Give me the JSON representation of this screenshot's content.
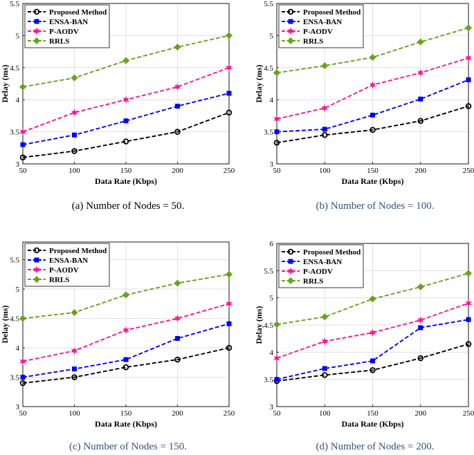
{
  "legend": [
    "Proposed Method",
    "ENSA-BAN",
    "P-AODV",
    "RRLS"
  ],
  "series_colors": [
    "#000000",
    "#0000ff",
    "#ff1493",
    "#6aa121"
  ],
  "chart_data": [
    {
      "type": "line",
      "caption": "(a)  Number of Nodes = 50.",
      "xlabel": "Data Rate (Kbps)",
      "ylabel": "Delay (ms)",
      "x": [
        50,
        100,
        150,
        200,
        250
      ],
      "xticks": [
        "50",
        "100",
        "150",
        "200",
        "250"
      ],
      "ylim": [
        3,
        5.5
      ],
      "yticks": [
        "3",
        "3.5",
        "4",
        "4.5",
        "5",
        "5.5"
      ],
      "series": [
        {
          "name": "Proposed Method",
          "values": [
            3.1,
            3.2,
            3.35,
            3.5,
            3.8
          ]
        },
        {
          "name": "ENSA-BAN",
          "values": [
            3.3,
            3.45,
            3.67,
            3.9,
            4.1
          ]
        },
        {
          "name": "P-AODV",
          "values": [
            3.5,
            3.8,
            4.0,
            4.2,
            4.5
          ]
        },
        {
          "name": "RRLS",
          "values": [
            4.2,
            4.34,
            4.61,
            4.82,
            5.0
          ]
        }
      ]
    },
    {
      "type": "line",
      "caption": "(b)  Number of Nodes = 100.",
      "xlabel": "Data Rate (Kbps)",
      "ylabel": "Delay (ms)",
      "x": [
        50,
        100,
        150,
        200,
        250
      ],
      "xticks": [
        "50",
        "100",
        "150",
        "200",
        "250"
      ],
      "ylim": [
        3,
        5.5
      ],
      "yticks": [
        "3",
        "3.5",
        "4",
        "4.5",
        "5",
        "5.5"
      ],
      "series": [
        {
          "name": "Proposed Method",
          "values": [
            3.33,
            3.45,
            3.53,
            3.67,
            3.9
          ]
        },
        {
          "name": "ENSA-BAN",
          "values": [
            3.5,
            3.54,
            3.76,
            4.01,
            4.31
          ]
        },
        {
          "name": "P-AODV",
          "values": [
            3.7,
            3.87,
            4.23,
            4.42,
            4.65
          ]
        },
        {
          "name": "RRLS",
          "values": [
            4.42,
            4.53,
            4.66,
            4.9,
            5.12
          ]
        }
      ]
    },
    {
      "type": "line",
      "caption": "(c)  Number of Nodes = 150.",
      "xlabel": "Data Rate (Kbps)",
      "ylabel": "Delay (ms)",
      "x": [
        50,
        100,
        150,
        200,
        250
      ],
      "xticks": [
        "50",
        "100",
        "150",
        "200",
        "250"
      ],
      "ylim": [
        3,
        5.8
      ],
      "yticks": [
        "3",
        "3.5",
        "4",
        "4.5",
        "5",
        "5.5"
      ],
      "series": [
        {
          "name": "Proposed Method",
          "values": [
            3.4,
            3.5,
            3.67,
            3.8,
            4.0
          ]
        },
        {
          "name": "ENSA-BAN",
          "values": [
            3.5,
            3.64,
            3.8,
            4.16,
            4.41
          ]
        },
        {
          "name": "P-AODV",
          "values": [
            3.77,
            3.95,
            4.3,
            4.5,
            4.75
          ]
        },
        {
          "name": "RRLS",
          "values": [
            4.5,
            4.6,
            4.9,
            5.1,
            5.25
          ]
        }
      ]
    },
    {
      "type": "line",
      "caption": "(d)  Number of Nodes = 200.",
      "xlabel": "Data Rate (Kbps)",
      "ylabel": "Delay (ms)",
      "x": [
        50,
        100,
        150,
        200,
        250
      ],
      "xticks": [
        "50",
        "100",
        "150",
        "200",
        "250"
      ],
      "ylim": [
        3,
        6
      ],
      "yticks": [
        "3",
        "3.5",
        "4",
        "4.5",
        "5",
        "5.5",
        "6"
      ],
      "series": [
        {
          "name": "Proposed Method",
          "values": [
            3.47,
            3.58,
            3.67,
            3.89,
            4.15
          ]
        },
        {
          "name": "ENSA-BAN",
          "values": [
            3.5,
            3.7,
            3.84,
            4.45,
            4.6
          ]
        },
        {
          "name": "P-AODV",
          "values": [
            3.89,
            4.2,
            4.36,
            4.59,
            4.9
          ]
        },
        {
          "name": "RRLS",
          "values": [
            4.51,
            4.65,
            4.98,
            5.2,
            5.45
          ]
        }
      ]
    }
  ]
}
